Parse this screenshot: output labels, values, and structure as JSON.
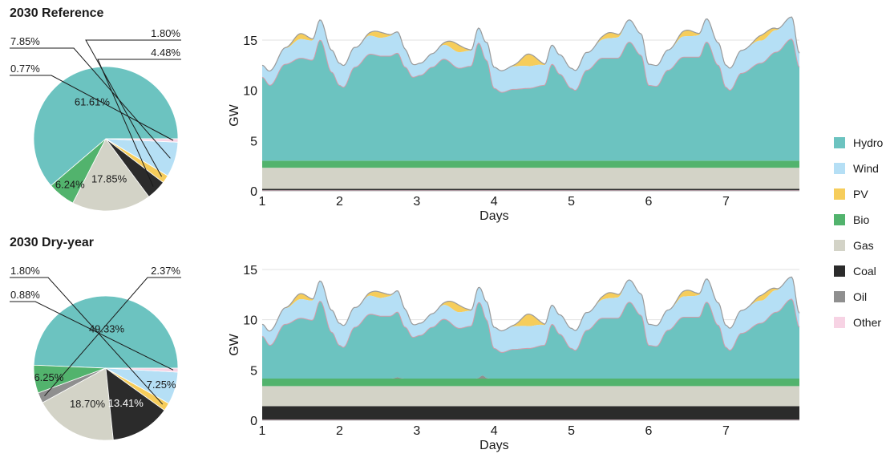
{
  "colors": {
    "Hydro": "#6cc3c0",
    "Wind": "#b5dff5",
    "PV": "#f6cd5b",
    "Bio": "#52b36d",
    "Gas": "#d3d3c7",
    "Coal": "#2b2b2b",
    "Oil": "#8f8f8f",
    "Other": "#f7d3e4"
  },
  "legend": [
    "Hydro",
    "Wind",
    "PV",
    "Bio",
    "Gas",
    "Coal",
    "Oil",
    "Other"
  ],
  "chart_data": [
    {
      "type": "pie",
      "title": "2030 Reference",
      "slices": [
        {
          "name": "Hydro",
          "value": 61.61,
          "label": "61.61%"
        },
        {
          "name": "Bio",
          "value": 6.24,
          "label": "6.24%"
        },
        {
          "name": "Gas",
          "value": 17.85,
          "label": "17.85%"
        },
        {
          "name": "Coal",
          "value": 4.48,
          "label": "4.48%"
        },
        {
          "name": "PV",
          "value": 1.8,
          "label": "1.80%"
        },
        {
          "name": "Wind",
          "value": 7.85,
          "label": "7.85%"
        },
        {
          "name": "Other",
          "value": 0.77,
          "label": "0.77%"
        }
      ]
    },
    {
      "type": "area",
      "xlabel": "Days",
      "ylabel": "GW",
      "xticks": [
        1,
        2,
        3,
        4,
        5,
        6,
        7
      ],
      "yticks": [
        0,
        5,
        10,
        15
      ],
      "xlim": [
        1,
        7.95
      ],
      "ylim": [
        0,
        15
      ],
      "base_layers": [
        {
          "name": "Other",
          "value": 0.05
        },
        {
          "name": "Coal",
          "value": 0.15
        },
        {
          "name": "Gas",
          "value": 2.1
        },
        {
          "name": "Bio",
          "value": 0.7
        }
      ],
      "hydro_keypoints": [
        [
          1,
          8.3
        ],
        [
          1.1,
          7.5
        ],
        [
          1.3,
          9.6
        ],
        [
          1.5,
          10.2
        ],
        [
          1.65,
          10.0
        ],
        [
          1.75,
          12.0
        ],
        [
          1.9,
          8.8
        ],
        [
          2,
          7.5
        ],
        [
          2.05,
          7.3
        ],
        [
          2.2,
          9.3
        ],
        [
          2.4,
          10.6
        ],
        [
          2.55,
          10.4
        ],
        [
          2.65,
          10.4
        ],
        [
          2.75,
          10.7
        ],
        [
          2.85,
          9.3
        ],
        [
          2.95,
          8.3
        ],
        [
          3.05,
          8.5
        ],
        [
          3.2,
          9.3
        ],
        [
          3.35,
          10.1
        ],
        [
          3.55,
          9.2
        ],
        [
          3.7,
          9.4
        ],
        [
          3.8,
          11.7
        ],
        [
          3.9,
          10.0
        ],
        [
          4,
          7.2
        ],
        [
          4.1,
          6.8
        ],
        [
          4.25,
          7.1
        ],
        [
          4.45,
          7.2
        ],
        [
          4.65,
          7.5
        ],
        [
          4.75,
          9.6
        ],
        [
          4.85,
          8.6
        ],
        [
          5,
          7.2
        ],
        [
          5.05,
          7.0
        ],
        [
          5.2,
          9.0
        ],
        [
          5.4,
          10.2
        ],
        [
          5.6,
          10.2
        ],
        [
          5.75,
          11.8
        ],
        [
          5.9,
          10.5
        ],
        [
          6,
          7.5
        ],
        [
          6.1,
          7.4
        ],
        [
          6.25,
          9.0
        ],
        [
          6.45,
          10.3
        ],
        [
          6.65,
          10.3
        ],
        [
          6.75,
          11.8
        ],
        [
          6.9,
          9.5
        ],
        [
          7,
          7.3
        ],
        [
          7.05,
          7.0
        ],
        [
          7.2,
          8.7
        ],
        [
          7.45,
          9.7
        ],
        [
          7.65,
          10.8
        ],
        [
          7.85,
          12.1
        ],
        [
          7.95,
          9.3
        ]
      ],
      "wind_keypoints": [
        [
          1,
          1.2
        ],
        [
          1.15,
          1.5
        ],
        [
          1.3,
          1.6
        ],
        [
          1.5,
          1.9
        ],
        [
          1.75,
          2.0
        ],
        [
          1.9,
          2.2
        ],
        [
          2,
          2.2
        ],
        [
          2.3,
          1.9
        ],
        [
          2.5,
          1.8
        ],
        [
          2.75,
          2.1
        ],
        [
          3,
          1.2
        ],
        [
          3.3,
          1.4
        ],
        [
          3.55,
          1.6
        ],
        [
          3.8,
          1.5
        ],
        [
          4,
          2.1
        ],
        [
          4.3,
          2.3
        ],
        [
          4.5,
          2.2
        ],
        [
          4.75,
          1.9
        ],
        [
          5,
          2.0
        ],
        [
          5.3,
          1.7
        ],
        [
          5.5,
          2.0
        ],
        [
          5.75,
          2.2
        ],
        [
          6,
          2.1
        ],
        [
          6.3,
          2.0
        ],
        [
          6.55,
          2.1
        ],
        [
          6.75,
          2.3
        ],
        [
          7,
          2.2
        ],
        [
          7.3,
          2.3
        ],
        [
          7.6,
          2.2
        ],
        [
          7.85,
          2.2
        ],
        [
          7.95,
          1.4
        ]
      ],
      "pv_peaks": [
        {
          "day": 1.5,
          "height": 0.55
        },
        {
          "day": 2.5,
          "height": 0.6
        },
        {
          "day": 3.5,
          "height": 0.8
        },
        {
          "day": 4.45,
          "height": 1.2
        },
        {
          "day": 5.5,
          "height": 0.55
        },
        {
          "day": 6.5,
          "height": 0.6
        },
        {
          "day": 7.5,
          "height": 0.6
        }
      ],
      "oil_spikes": []
    },
    {
      "type": "pie",
      "title": "2030 Dry-year",
      "slices": [
        {
          "name": "Hydro",
          "value": 49.33,
          "label": "49.33%"
        },
        {
          "name": "Bio",
          "value": 6.25,
          "label": "6.25%"
        },
        {
          "name": "Oil",
          "value": 2.37,
          "label": "2.37%"
        },
        {
          "name": "Gas",
          "value": 18.7,
          "label": "18.70%"
        },
        {
          "name": "Coal",
          "value": 13.41,
          "label": "13.41%"
        },
        {
          "name": "PV",
          "value": 1.8,
          "label": "1.80%"
        },
        {
          "name": "Wind",
          "value": 7.25,
          "label": "7.25%"
        },
        {
          "name": "Other",
          "value": 0.88,
          "label": "0.88%"
        }
      ]
    },
    {
      "type": "area",
      "xlabel": "Days",
      "ylabel": "GW",
      "xticks": [
        1,
        2,
        3,
        4,
        5,
        6,
        7
      ],
      "yticks": [
        0,
        5,
        10,
        15
      ],
      "xlim": [
        1,
        7.95
      ],
      "ylim": [
        0,
        15
      ],
      "base_layers": [
        {
          "name": "Other",
          "value": 0.05
        },
        {
          "name": "Coal",
          "value": 1.35
        },
        {
          "name": "Gas",
          "value": 2.0
        },
        {
          "name": "Bio",
          "value": 0.75
        }
      ],
      "hydro_keypoints": [
        [
          1,
          4.2
        ],
        [
          1.1,
          3.3
        ],
        [
          1.3,
          5.4
        ],
        [
          1.5,
          6.0
        ],
        [
          1.65,
          5.8
        ],
        [
          1.75,
          7.7
        ],
        [
          1.9,
          4.6
        ],
        [
          2,
          3.3
        ],
        [
          2.05,
          3.1
        ],
        [
          2.2,
          5.1
        ],
        [
          2.4,
          6.4
        ],
        [
          2.55,
          6.2
        ],
        [
          2.65,
          6.2
        ],
        [
          2.75,
          6.5
        ],
        [
          2.85,
          5.1
        ],
        [
          2.95,
          4.1
        ],
        [
          3.05,
          4.3
        ],
        [
          3.2,
          5.1
        ],
        [
          3.35,
          5.9
        ],
        [
          3.55,
          5.0
        ],
        [
          3.7,
          5.2
        ],
        [
          3.8,
          7.5
        ],
        [
          3.9,
          5.8
        ],
        [
          4,
          3.0
        ],
        [
          4.1,
          2.6
        ],
        [
          4.25,
          2.9
        ],
        [
          4.45,
          3.0
        ],
        [
          4.65,
          3.3
        ],
        [
          4.75,
          5.4
        ],
        [
          4.85,
          4.4
        ],
        [
          5,
          3.0
        ],
        [
          5.05,
          2.8
        ],
        [
          5.2,
          4.8
        ],
        [
          5.4,
          6.0
        ],
        [
          5.6,
          6.0
        ],
        [
          5.75,
          7.6
        ],
        [
          5.9,
          6.3
        ],
        [
          6,
          3.3
        ],
        [
          6.1,
          3.2
        ],
        [
          6.25,
          4.8
        ],
        [
          6.45,
          6.1
        ],
        [
          6.65,
          6.1
        ],
        [
          6.75,
          7.6
        ],
        [
          6.9,
          5.3
        ],
        [
          7,
          3.1
        ],
        [
          7.05,
          2.8
        ],
        [
          7.2,
          4.5
        ],
        [
          7.45,
          5.5
        ],
        [
          7.65,
          6.6
        ],
        [
          7.85,
          7.9
        ],
        [
          7.95,
          5.1
        ]
      ],
      "wind_keypoints": [
        [
          1,
          1.2
        ],
        [
          1.15,
          1.5
        ],
        [
          1.3,
          1.6
        ],
        [
          1.5,
          1.9
        ],
        [
          1.75,
          2.0
        ],
        [
          1.9,
          2.2
        ],
        [
          2,
          2.2
        ],
        [
          2.3,
          1.9
        ],
        [
          2.5,
          1.8
        ],
        [
          2.75,
          2.1
        ],
        [
          3,
          1.2
        ],
        [
          3.3,
          1.4
        ],
        [
          3.55,
          1.6
        ],
        [
          3.8,
          1.5
        ],
        [
          4,
          2.1
        ],
        [
          4.3,
          2.3
        ],
        [
          4.5,
          2.2
        ],
        [
          4.75,
          1.9
        ],
        [
          5,
          2.0
        ],
        [
          5.3,
          1.7
        ],
        [
          5.5,
          2.0
        ],
        [
          5.75,
          2.2
        ],
        [
          6,
          2.1
        ],
        [
          6.3,
          2.0
        ],
        [
          6.55,
          2.1
        ],
        [
          6.75,
          2.3
        ],
        [
          7,
          2.2
        ],
        [
          7.3,
          2.3
        ],
        [
          7.6,
          2.2
        ],
        [
          7.85,
          2.2
        ],
        [
          7.95,
          1.4
        ]
      ],
      "pv_peaks": [
        {
          "day": 1.5,
          "height": 0.55
        },
        {
          "day": 2.5,
          "height": 0.6
        },
        {
          "day": 3.5,
          "height": 0.8
        },
        {
          "day": 4.45,
          "height": 1.2
        },
        {
          "day": 5.5,
          "height": 0.55
        },
        {
          "day": 6.5,
          "height": 0.6
        },
        {
          "day": 7.5,
          "height": 0.6
        }
      ],
      "oil_spikes": [
        {
          "day": 2.75,
          "height": 0.12
        },
        {
          "day": 3.85,
          "height": 0.3
        }
      ]
    }
  ]
}
